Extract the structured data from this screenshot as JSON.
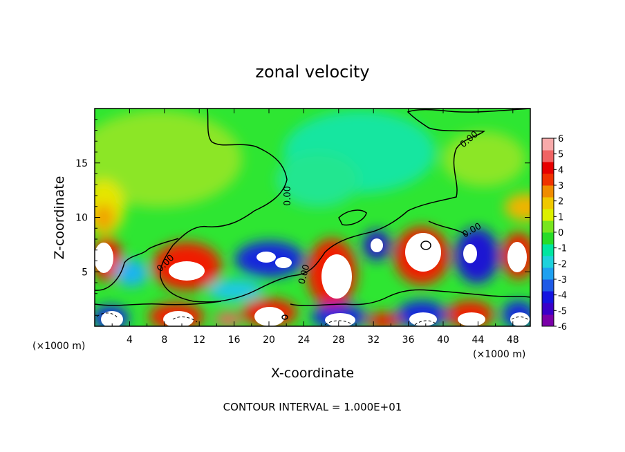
{
  "chart_data": {
    "type": "heatmap",
    "title": "zonal velocity",
    "xlabel": "X-coordinate",
    "ylabel": "Z-coordinate",
    "x_unit_label": "(×1000 m)",
    "y_unit_label": "(×1000 m)",
    "footer": "CONTOUR INTERVAL = 1.000E+01",
    "xlim": [
      0,
      50
    ],
    "ylim": [
      0,
      20
    ],
    "x_ticks": [
      "4",
      "8",
      "12",
      "16",
      "20",
      "24",
      "28",
      "32",
      "36",
      "40",
      "44",
      "48"
    ],
    "y_ticks": [
      "5",
      "10",
      "15"
    ],
    "contour_labels": [
      "0.00",
      "0.00",
      "0.00",
      "0.00",
      "0.00"
    ],
    "colorbar": {
      "vmin": -6,
      "vmax": 6,
      "tick_labels": [
        "6",
        "5",
        "4",
        "3",
        "2",
        "1",
        "0",
        "-1",
        "-2",
        "-3",
        "-4",
        "-5",
        "-6"
      ],
      "colors": [
        "#7a00a8",
        "#3a00c8",
        "#1414e0",
        "#1e5ae6",
        "#1ea0f0",
        "#1ed2dc",
        "#00e6a0",
        "#28dc28",
        "#78e61e",
        "#dcf000",
        "#f0c800",
        "#f08c00",
        "#f03200",
        "#e60000",
        "#f06464",
        "#f8aaaa"
      ]
    },
    "grid": false,
    "legend": "colorbar-right"
  }
}
